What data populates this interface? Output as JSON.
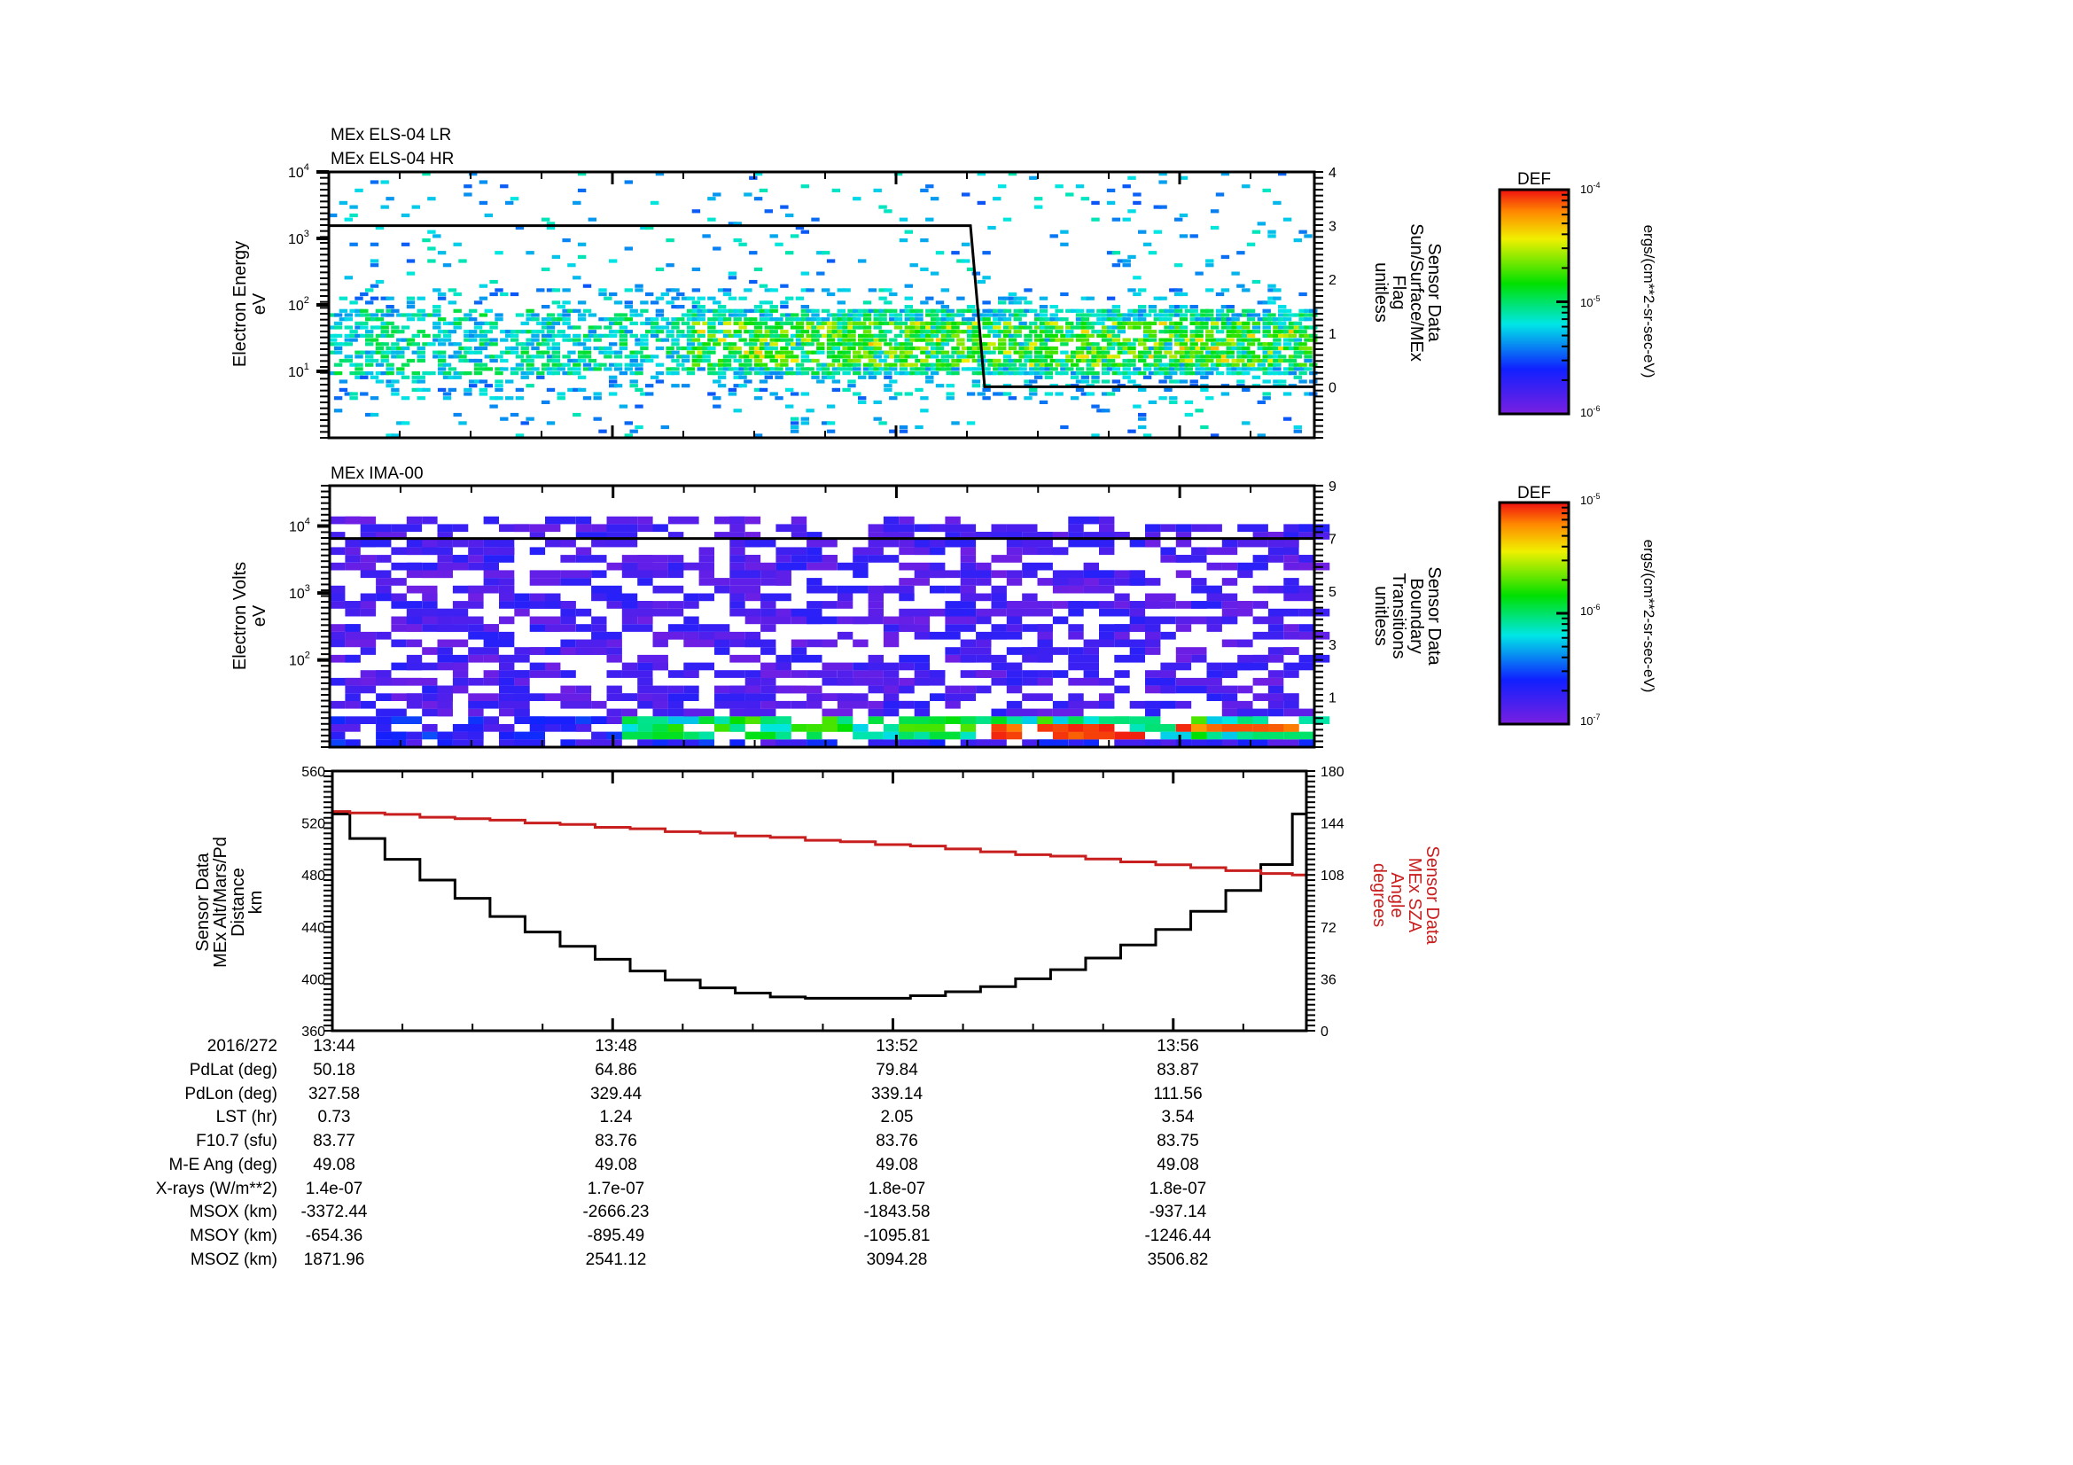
{
  "chart_data": [
    {
      "type": "heatmap",
      "id": "els",
      "titles": [
        "MEx ELS-04 LR",
        "MEx ELS-04 HR"
      ],
      "ylabel": [
        "Electron Energy",
        "eV"
      ],
      "yscale": "log",
      "ylim": [
        1,
        10000
      ],
      "yticks": [
        {
          "label": "10",
          "exp": "1",
          "value": 10
        },
        {
          "label": "10",
          "exp": "2",
          "value": 100
        },
        {
          "label": "10",
          "exp": "3",
          "value": 1000
        },
        {
          "label": "10",
          "exp": "4",
          "value": 10000
        }
      ],
      "y2label": [
        "Sensor Data",
        "Sun/Surface/MEx",
        "Flag",
        "unitless"
      ],
      "y2lim": [
        -0.95,
        4
      ],
      "y2ticks": [
        "0",
        "1",
        "2",
        "3",
        "4"
      ],
      "overlay_line": {
        "name": "Sun/Surface/MEx Flag",
        "x_minutes": [
          0,
          9.05,
          9.25,
          13.9
        ],
        "y": [
          3,
          3,
          0,
          0
        ]
      },
      "colorbar": {
        "title": "DEF",
        "top": "10-4",
        "mid": "10-5",
        "bottom": "10-6",
        "top_exp": "-4",
        "mid_exp": "-5",
        "bottom_exp": "-6",
        "units": "ergs/(cm**2-sr-sec-eV)"
      },
      "description": "Sparse blue/cyan noise across energies; denser green/yellow band ~10-60 eV intensifying after 13:48"
    },
    {
      "type": "heatmap",
      "id": "ima",
      "titles": [
        "MEx IMA-00"
      ],
      "ylabel": [
        "Electron Volts",
        "eV"
      ],
      "yscale": "log",
      "ylim": [
        5,
        40000
      ],
      "yticks": [
        {
          "label": "10",
          "exp": "2",
          "value": 100
        },
        {
          "label": "10",
          "exp": "3",
          "value": 1000
        },
        {
          "label": "10",
          "exp": "4",
          "value": 10000
        }
      ],
      "y2label": [
        "Sensor Data",
        "Boundary",
        "Transitions",
        "unitless"
      ],
      "y2lim": [
        -0.9,
        9
      ],
      "y2ticks": [
        "1",
        "3",
        "5",
        "7",
        "9"
      ],
      "overlay_line": {
        "name": "Boundary Transitions",
        "x_minutes": [
          0,
          13.9
        ],
        "y": [
          7,
          7
        ]
      },
      "colorbar": {
        "title": "DEF",
        "top": "10-5",
        "mid": "10-6",
        "bottom": "10-7",
        "top_exp": "-5",
        "mid_exp": "-6",
        "bottom_exp": "-7",
        "units": "ergs/(cm**2-sr-sec-eV)"
      },
      "description": "Purple background noise at all energies; low-energy band (<20 eV) with red/yellow peaks around 13:53-13:57"
    },
    {
      "type": "line",
      "id": "orbit",
      "ylabel": [
        "Sensor Data",
        "MEx Alt/Mars/Pd",
        "Distance",
        "km"
      ],
      "ylim": [
        360,
        560
      ],
      "yticks": [
        "360",
        "400",
        "440",
        "480",
        "520",
        "560"
      ],
      "y2label": [
        "Sensor Data",
        "MEx SZA",
        "Angle",
        "degrees"
      ],
      "y2lim": [
        0,
        180
      ],
      "y2ticks": [
        "0",
        "36",
        "72",
        "108",
        "144",
        "180"
      ],
      "x_minutes": [
        0,
        0.5,
        1,
        1.5,
        2,
        2.5,
        3,
        3.5,
        4,
        4.5,
        5,
        5.5,
        6,
        6.5,
        7,
        7.5,
        8,
        8.5,
        9,
        9.5,
        10,
        10.5,
        11,
        11.5,
        12,
        12.5,
        13,
        13.5,
        13.9
      ],
      "series": [
        {
          "name": "MEx Alt",
          "color": "#000000",
          "axis": "left",
          "values": [
            527,
            508,
            492,
            476,
            462,
            448,
            436,
            425,
            415,
            406,
            399,
            393,
            389,
            386,
            385,
            385,
            385,
            387,
            390,
            394,
            400,
            407,
            416,
            426,
            438,
            452,
            468,
            488,
            527
          ]
        },
        {
          "name": "MEx SZA",
          "color": "#c81e1e",
          "axis": "right",
          "values": [
            152,
            151,
            150,
            148,
            147,
            146,
            144,
            143,
            141,
            140,
            138,
            137,
            135,
            134,
            132,
            131,
            129,
            128,
            126,
            124,
            122,
            121,
            119,
            117,
            115,
            113,
            111,
            109,
            108
          ]
        }
      ]
    }
  ],
  "xaxis": {
    "date_label": "2016/272",
    "ticks": [
      "13:44",
      "13:48",
      "13:52",
      "13:56"
    ],
    "start": "13:44",
    "span_minutes": 13.9
  },
  "ephemeris": {
    "rows": [
      {
        "label": "PdLat (deg)",
        "values": [
          "50.18",
          "64.86",
          "79.84",
          "83.87"
        ]
      },
      {
        "label": "PdLon (deg)",
        "values": [
          "327.58",
          "329.44",
          "339.14",
          "111.56"
        ]
      },
      {
        "label": "LST (hr)",
        "values": [
          "0.73",
          "1.24",
          "2.05",
          "3.54"
        ]
      },
      {
        "label": "F10.7 (sfu)",
        "values": [
          "83.77",
          "83.76",
          "83.76",
          "83.75"
        ]
      },
      {
        "label": "M-E Ang (deg)",
        "values": [
          "49.08",
          "49.08",
          "49.08",
          "49.08"
        ]
      },
      {
        "label": "X-rays (W/m**2)",
        "values": [
          "1.4e-07",
          "1.7e-07",
          "1.8e-07",
          "1.8e-07"
        ]
      },
      {
        "label": "MSOX (km)",
        "values": [
          "-3372.44",
          "-2666.23",
          "-1843.58",
          "-937.14"
        ]
      },
      {
        "label": "MSOY (km)",
        "values": [
          "-654.36",
          "-895.49",
          "-1095.81",
          "-1246.44"
        ]
      },
      {
        "label": "MSOZ (km)",
        "values": [
          "1871.96",
          "2541.12",
          "3094.28",
          "3506.82"
        ]
      }
    ]
  },
  "colors": {
    "sza_line": "#c81e1e",
    "axis": "#000000"
  }
}
